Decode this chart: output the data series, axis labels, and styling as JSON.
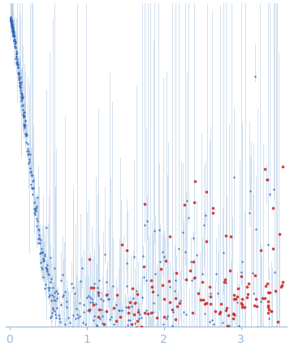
{
  "xlim": [
    -0.05,
    3.6
  ],
  "ylim": [
    -0.02,
    1.05
  ],
  "bg_color": "#ffffff",
  "error_color": "#b8d0e8",
  "blue_dot_color": "#3366bb",
  "red_dot_color": "#cc2222",
  "axis_color": "#99b8d4",
  "tick_color": "#99b8d4",
  "tick_label_color": "#99b8d4",
  "xticks": [
    0,
    1,
    2,
    3
  ],
  "figsize": [
    3.57,
    4.37
  ],
  "dpi": 100
}
